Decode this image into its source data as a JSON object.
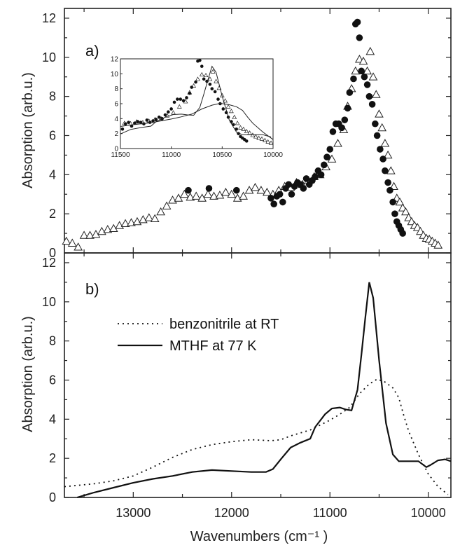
{
  "chart_data": [
    {
      "panel": "a)",
      "type": "scatter",
      "xlim": [
        13700,
        9770
      ],
      "ylim": [
        0,
        12.5
      ],
      "yticks": [
        0,
        2,
        4,
        6,
        8,
        10,
        12
      ],
      "ylabel": "Absorption (arb.u.)",
      "series": [
        {
          "marker": "open-triangle",
          "points": [
            [
              13680,
              0.6
            ],
            [
              13620,
              0.5
            ],
            [
              13560,
              0.3
            ],
            [
              13500,
              0.9
            ],
            [
              13440,
              0.9
            ],
            [
              13380,
              0.95
            ],
            [
              13320,
              1.1
            ],
            [
              13260,
              1.2
            ],
            [
              13200,
              1.25
            ],
            [
              13140,
              1.4
            ],
            [
              13080,
              1.5
            ],
            [
              13020,
              1.55
            ],
            [
              12960,
              1.6
            ],
            [
              12900,
              1.7
            ],
            [
              12840,
              1.8
            ],
            [
              12780,
              1.75
            ],
            [
              12720,
              2.1
            ],
            [
              12660,
              2.4
            ],
            [
              12600,
              2.7
            ],
            [
              12540,
              2.8
            ],
            [
              12480,
              3.0
            ],
            [
              12420,
              2.85
            ],
            [
              12360,
              2.9
            ],
            [
              12300,
              2.8
            ],
            [
              12240,
              3.0
            ],
            [
              12180,
              2.9
            ],
            [
              12120,
              2.95
            ],
            [
              12060,
              3.1
            ],
            [
              12000,
              3.0
            ],
            [
              11940,
              2.8
            ],
            [
              11880,
              2.9
            ],
            [
              11820,
              3.2
            ],
            [
              11760,
              3.35
            ],
            [
              11700,
              3.2
            ],
            [
              11640,
              3.1
            ],
            [
              11580,
              3.0
            ],
            [
              11520,
              3.2
            ],
            [
              11460,
              3.4
            ],
            [
              11400,
              3.35
            ],
            [
              11340,
              3.6
            ],
            [
              11280,
              3.5
            ],
            [
              11220,
              3.7
            ],
            [
              11160,
              3.9
            ],
            [
              11100,
              4.0
            ],
            [
              11040,
              4.4
            ],
            [
              10980,
              4.8
            ],
            [
              10920,
              5.6
            ],
            [
              10860,
              6.3
            ],
            [
              10820,
              7.5
            ],
            [
              10780,
              8.4
            ],
            [
              10740,
              9.3
            ],
            [
              10700,
              9.9
            ],
            [
              10660,
              9.8
            ],
            [
              10620,
              9.3
            ],
            [
              10590,
              10.3
            ],
            [
              10560,
              9.0
            ],
            [
              10530,
              8.1
            ],
            [
              10500,
              7.1
            ],
            [
              10470,
              6.4
            ],
            [
              10440,
              5.6
            ],
            [
              10410,
              5.0
            ],
            [
              10380,
              4.2
            ],
            [
              10350,
              3.4
            ],
            [
              10320,
              2.8
            ],
            [
              10290,
              2.6
            ],
            [
              10260,
              2.3
            ],
            [
              10230,
              2.1
            ],
            [
              10200,
              1.8
            ],
            [
              10170,
              1.6
            ],
            [
              10140,
              1.4
            ],
            [
              10110,
              1.3
            ],
            [
              10080,
              1.1
            ],
            [
              10050,
              0.9
            ],
            [
              10020,
              0.75
            ],
            [
              9990,
              0.7
            ],
            [
              9960,
              0.6
            ],
            [
              9930,
              0.5
            ],
            [
              9900,
              0.4
            ]
          ]
        },
        {
          "marker": "filled-circle",
          "points": [
            [
              12440,
              3.2
            ],
            [
              12230,
              3.3
            ],
            [
              11950,
              3.2
            ],
            [
              11600,
              2.8
            ],
            [
              11570,
              2.5
            ],
            [
              11540,
              2.9
            ],
            [
              11510,
              3.0
            ],
            [
              11480,
              2.6
            ],
            [
              11450,
              3.3
            ],
            [
              11420,
              3.5
            ],
            [
              11390,
              3.0
            ],
            [
              11360,
              3.4
            ],
            [
              11330,
              3.6
            ],
            [
              11300,
              3.5
            ],
            [
              11270,
              3.3
            ],
            [
              11240,
              3.8
            ],
            [
              11210,
              3.5
            ],
            [
              11180,
              3.7
            ],
            [
              11150,
              3.9
            ],
            [
              11120,
              4.2
            ],
            [
              11090,
              4.0
            ],
            [
              11060,
              4.5
            ],
            [
              11030,
              4.9
            ],
            [
              11000,
              5.3
            ],
            [
              10970,
              6.2
            ],
            [
              10940,
              6.6
            ],
            [
              10910,
              6.6
            ],
            [
              10880,
              6.4
            ],
            [
              10850,
              6.8
            ],
            [
              10820,
              7.4
            ],
            [
              10800,
              8.2
            ],
            [
              10760,
              8.9
            ],
            [
              10740,
              11.7
            ],
            [
              10720,
              11.8
            ],
            [
              10700,
              11.0
            ],
            [
              10680,
              9.3
            ],
            [
              10650,
              9.0
            ],
            [
              10620,
              8.6
            ],
            [
              10600,
              8.0
            ],
            [
              10570,
              7.6
            ],
            [
              10540,
              6.6
            ],
            [
              10520,
              6.0
            ],
            [
              10490,
              5.3
            ],
            [
              10460,
              4.8
            ],
            [
              10440,
              4.2
            ],
            [
              10410,
              3.6
            ],
            [
              10390,
              3.2
            ],
            [
              10360,
              2.6
            ],
            [
              10340,
              2.0
            ],
            [
              10320,
              1.6
            ],
            [
              10300,
              1.4
            ],
            [
              10280,
              1.2
            ],
            [
              10260,
              1.0
            ]
          ]
        }
      ],
      "inset": {
        "type": "scatter",
        "xlim": [
          11500,
          10000
        ],
        "ylim": [
          0,
          12
        ],
        "xticks": [
          11500,
          11000,
          10500,
          10000
        ],
        "yticks": [
          0,
          2,
          4,
          6,
          8,
          10,
          12
        ]
      }
    },
    {
      "panel": "b)",
      "type": "line",
      "xlim": [
        13700,
        9770
      ],
      "ylim": [
        0,
        12.5
      ],
      "xticks": [
        13000,
        12000,
        11000,
        10000
      ],
      "yticks": [
        0,
        2,
        4,
        6,
        8,
        10,
        12
      ],
      "xlabel": "Wavenumbers (cm⁻¹ )",
      "ylabel": "Absorption (arb.u.)",
      "series": [
        {
          "name": "benzonitrile at RT",
          "style": "dotted",
          "points": [
            [
              13700,
              0.55
            ],
            [
              13400,
              0.7
            ],
            [
              13200,
              0.85
            ],
            [
              13000,
              1.1
            ],
            [
              12800,
              1.55
            ],
            [
              12600,
              2.05
            ],
            [
              12400,
              2.45
            ],
            [
              12200,
              2.7
            ],
            [
              12000,
              2.85
            ],
            [
              11800,
              2.95
            ],
            [
              11600,
              2.9
            ],
            [
              11500,
              2.95
            ],
            [
              11400,
              3.15
            ],
            [
              11300,
              3.3
            ],
            [
              11200,
              3.45
            ],
            [
              11100,
              3.7
            ],
            [
              11000,
              3.95
            ],
            [
              10900,
              4.25
            ],
            [
              10800,
              4.6
            ],
            [
              10700,
              5.3
            ],
            [
              10600,
              5.8
            ],
            [
              10520,
              6.05
            ],
            [
              10440,
              5.9
            ],
            [
              10360,
              5.6
            ],
            [
              10300,
              5.1
            ],
            [
              10250,
              4.2
            ],
            [
              10200,
              3.4
            ],
            [
              10100,
              2.2
            ],
            [
              10000,
              1.2
            ],
            [
              9900,
              0.55
            ],
            [
              9800,
              0.15
            ]
          ]
        },
        {
          "name": "MTHF at 77 K",
          "style": "solid",
          "points": [
            [
              13570,
              0.0
            ],
            [
              13400,
              0.25
            ],
            [
              13200,
              0.5
            ],
            [
              13000,
              0.75
            ],
            [
              12800,
              0.95
            ],
            [
              12600,
              1.1
            ],
            [
              12400,
              1.3
            ],
            [
              12200,
              1.4
            ],
            [
              12000,
              1.35
            ],
            [
              11800,
              1.3
            ],
            [
              11650,
              1.3
            ],
            [
              11580,
              1.45
            ],
            [
              11500,
              1.95
            ],
            [
              11400,
              2.55
            ],
            [
              11300,
              2.8
            ],
            [
              11200,
              3.0
            ],
            [
              11150,
              3.6
            ],
            [
              11050,
              4.25
            ],
            [
              10980,
              4.55
            ],
            [
              10900,
              4.6
            ],
            [
              10840,
              4.5
            ],
            [
              10780,
              4.45
            ],
            [
              10720,
              5.5
            ],
            [
              10680,
              7.3
            ],
            [
              10640,
              9.2
            ],
            [
              10600,
              11.0
            ],
            [
              10560,
              10.2
            ],
            [
              10500,
              7.0
            ],
            [
              10430,
              3.8
            ],
            [
              10360,
              2.2
            ],
            [
              10300,
              1.85
            ],
            [
              10200,
              1.85
            ],
            [
              10100,
              1.85
            ],
            [
              10020,
              1.55
            ],
            [
              9980,
              1.65
            ],
            [
              9900,
              1.9
            ],
            [
              9830,
              1.95
            ],
            [
              9770,
              1.85
            ]
          ]
        }
      ]
    }
  ]
}
